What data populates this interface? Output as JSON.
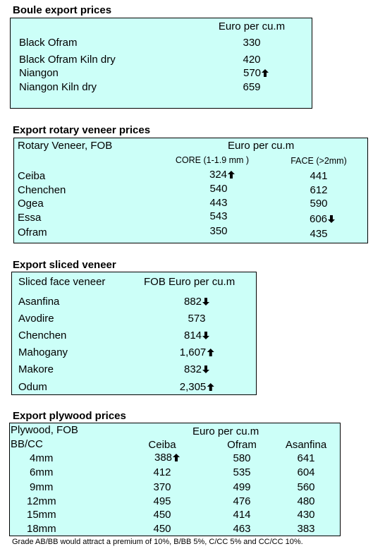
{
  "boule": {
    "title": "Boule export prices",
    "header": "Euro per cu.m",
    "rows": [
      {
        "name": "Black Ofram",
        "value": "330",
        "trend": ""
      },
      {
        "name": "Black Ofram  Kiln dry",
        "value": "420",
        "trend": ""
      },
      {
        "name": "Niangon",
        "value": "570",
        "trend": "up"
      },
      {
        "name": "Niangon Kiln dry",
        "value": "659",
        "trend": ""
      }
    ]
  },
  "rotary": {
    "title": "Export rotary veneer prices",
    "label": "Rotary Veneer,  FOB",
    "header": "Euro  per cu.m",
    "core_header": "CORE (1-1.9 mm )",
    "face_header": "FACE (>2mm)",
    "rows": [
      {
        "name": "Ceiba",
        "core": "324",
        "core_trend": "up",
        "face": "441",
        "face_trend": ""
      },
      {
        "name": "Chenchen",
        "core": "540",
        "core_trend": "",
        "face": "612",
        "face_trend": ""
      },
      {
        "name": "Ogea",
        "core": "443",
        "core_trend": "",
        "face": "590",
        "face_trend": ""
      },
      {
        "name": "Essa",
        "core": "543",
        "core_trend": "",
        "face": "606",
        "face_trend": "down"
      },
      {
        "name": "Ofram",
        "core": "350",
        "core_trend": "",
        "face": "435",
        "face_trend": ""
      }
    ]
  },
  "sliced": {
    "title": "Export sliced veneer",
    "label": "Sliced face veneer",
    "header": "FOB Euro per cu.m",
    "rows": [
      {
        "name": "Asanfina",
        "value": "882",
        "trend": "down"
      },
      {
        "name": "Avodire",
        "value": "573",
        "trend": ""
      },
      {
        "name": "Chenchen",
        "value": "814",
        "trend": "down"
      },
      {
        "name": "Mahogany",
        "value": "1,607",
        "trend": "up"
      },
      {
        "name": "Makore",
        "value": "832",
        "trend": "down"
      },
      {
        "name": "Odum",
        "value": "2,305",
        "trend": "up"
      }
    ]
  },
  "plywood": {
    "title": "Export plywood prices",
    "label": "Plywood, FOB",
    "header": "Euro per cu.m",
    "grade_label": "BB/CC",
    "columns": [
      "Ceiba",
      "Ofram",
      "Asanfina"
    ],
    "rows": [
      {
        "size": "4mm",
        "values": [
          "388",
          "580",
          "641"
        ],
        "trends": [
          "up",
          "",
          ""
        ]
      },
      {
        "size": "6mm",
        "values": [
          "412",
          "535",
          "604"
        ],
        "trends": [
          "",
          "",
          ""
        ]
      },
      {
        "size": "9mm",
        "values": [
          "370",
          "499",
          "560"
        ],
        "trends": [
          "",
          "",
          ""
        ]
      },
      {
        "size": "12mm",
        "values": [
          "495",
          "476",
          "480"
        ],
        "trends": [
          "",
          "",
          ""
        ]
      },
      {
        "size": "15mm",
        "values": [
          "450",
          "414",
          "430"
        ],
        "trends": [
          "",
          "",
          ""
        ]
      },
      {
        "size": "18mm",
        "values": [
          "450",
          "463",
          "383"
        ],
        "trends": [
          "",
          "",
          ""
        ]
      }
    ],
    "note": "Grade AB/BB would attract a premium of 10%, B/BB 5%, C/CC 5% and CC/CC 10%."
  }
}
